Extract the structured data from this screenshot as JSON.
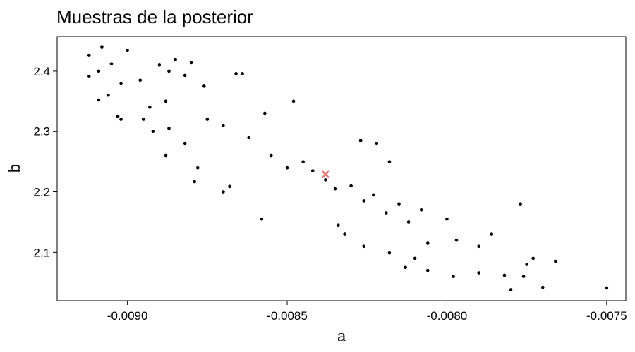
{
  "chart_data": {
    "type": "scatter",
    "title": "Muestras de la posterior",
    "xlabel": "a",
    "ylabel": "b",
    "xlim": [
      -0.00922,
      -0.00744
    ],
    "ylim": [
      2.02,
      2.457
    ],
    "xticks": [
      -0.009,
      -0.0085,
      -0.008,
      -0.0075
    ],
    "xtick_labels": [
      "-0.0090",
      "-0.0085",
      "-0.0080",
      "-0.0075"
    ],
    "yticks": [
      2.1,
      2.2,
      2.3,
      2.4
    ],
    "ytick_labels": [
      "2.1",
      "2.2",
      "2.3",
      "2.4"
    ],
    "grid": false,
    "legend": "none",
    "series": [
      {
        "color": "#000000",
        "marker": "dot",
        "points": [
          [
            -0.00912,
            2.426
          ],
          [
            -0.00908,
            2.44
          ],
          [
            -0.009,
            2.434
          ],
          [
            -0.00905,
            2.412
          ],
          [
            -0.00912,
            2.391
          ],
          [
            -0.00909,
            2.4
          ],
          [
            -0.00906,
            2.36
          ],
          [
            -0.00909,
            2.352
          ],
          [
            -0.00896,
            2.385
          ],
          [
            -0.00902,
            2.379
          ],
          [
            -0.00903,
            2.325
          ],
          [
            -0.00902,
            2.32
          ],
          [
            -0.0089,
            2.41
          ],
          [
            -0.00885,
            2.419
          ],
          [
            -0.0088,
            2.414
          ],
          [
            -0.00887,
            2.4
          ],
          [
            -0.00882,
            2.393
          ],
          [
            -0.00876,
            2.375
          ],
          [
            -0.00888,
            2.35
          ],
          [
            -0.00893,
            2.34
          ],
          [
            -0.00895,
            2.32
          ],
          [
            -0.00892,
            2.3
          ],
          [
            -0.00887,
            2.305
          ],
          [
            -0.00882,
            2.28
          ],
          [
            -0.00888,
            2.26
          ],
          [
            -0.00878,
            2.24
          ],
          [
            -0.00866,
            2.396
          ],
          [
            -0.00864,
            2.396
          ],
          [
            -0.00879,
            2.217
          ],
          [
            -0.00868,
            2.209
          ],
          [
            -0.0087,
            2.2
          ],
          [
            -0.00858,
            2.155
          ],
          [
            -0.00834,
            2.145
          ],
          [
            -0.00832,
            2.13
          ],
          [
            -0.00826,
            2.11
          ],
          [
            -0.00818,
            2.099
          ],
          [
            -0.0081,
            2.09
          ],
          [
            -0.00806,
            2.07
          ],
          [
            -0.00798,
            2.06
          ],
          [
            -0.0079,
            2.066
          ],
          [
            -0.00782,
            2.062
          ],
          [
            -0.0078,
            2.038
          ],
          [
            -0.00777,
            2.18
          ],
          [
            -0.00775,
            2.08
          ],
          [
            -0.00776,
            2.06
          ],
          [
            -0.00773,
            2.09
          ],
          [
            -0.0077,
            2.042
          ],
          [
            -0.00766,
            2.085
          ],
          [
            -0.0075,
            2.041
          ],
          [
            -0.00786,
            2.13
          ],
          [
            -0.0079,
            2.11
          ],
          [
            -0.00813,
            2.075
          ],
          [
            -0.00818,
            2.25
          ],
          [
            -0.00822,
            2.28
          ],
          [
            -0.00827,
            2.285
          ],
          [
            -0.00848,
            2.35
          ],
          [
            -0.00857,
            2.33
          ],
          [
            -0.008,
            2.155
          ],
          [
            -0.00797,
            2.12
          ],
          [
            -0.00806,
            2.115
          ],
          [
            -0.00855,
            2.26
          ],
          [
            -0.00845,
            2.25
          ],
          [
            -0.00838,
            2.22
          ],
          [
            -0.0083,
            2.21
          ],
          [
            -0.00823,
            2.195
          ],
          [
            -0.00815,
            2.18
          ],
          [
            -0.00808,
            2.17
          ],
          [
            -0.00862,
            2.29
          ],
          [
            -0.0087,
            2.31
          ],
          [
            -0.00875,
            2.32
          ],
          [
            -0.0085,
            2.24
          ],
          [
            -0.00842,
            2.235
          ],
          [
            -0.00835,
            2.205
          ],
          [
            -0.00826,
            2.185
          ],
          [
            -0.00819,
            2.165
          ],
          [
            -0.00812,
            2.15
          ]
        ]
      },
      {
        "color": "#e8776f",
        "marker": "x",
        "points": [
          [
            -0.00838,
            2.229
          ]
        ]
      }
    ]
  }
}
